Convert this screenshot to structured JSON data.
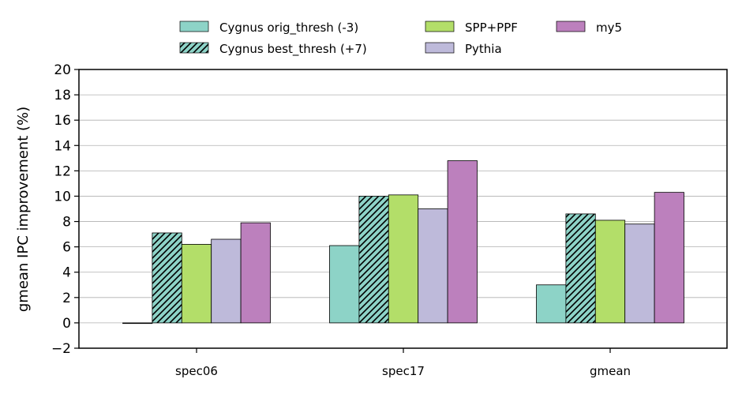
{
  "chart_data": {
    "type": "bar",
    "categories": [
      "spec06",
      "spec17",
      "gmean"
    ],
    "series": [
      {
        "name": "Cygnus orig_thresh (-3)",
        "values": [
          0.0,
          6.1,
          3.0
        ],
        "color": "#8dd3c7",
        "hatch": false
      },
      {
        "name": "Cygnus best_thresh (+7)",
        "values": [
          7.1,
          10.0,
          8.6
        ],
        "color": "#8dd3c7",
        "hatch": true
      },
      {
        "name": "SPP+PPF",
        "values": [
          6.2,
          10.1,
          8.1
        ],
        "color": "#b3de69",
        "hatch": false
      },
      {
        "name": "Pythia",
        "values": [
          6.6,
          9.0,
          7.8
        ],
        "color": "#bebada",
        "hatch": false
      },
      {
        "name": "my5",
        "values": [
          7.9,
          12.8,
          10.3
        ],
        "color": "#bc80bd",
        "hatch": false
      }
    ],
    "ylabel": "gmean IPC improvement (%)",
    "xlabel": "",
    "ylim": [
      -2,
      20
    ],
    "yticks": [
      "−2",
      "0",
      "2",
      "4",
      "6",
      "8",
      "10",
      "12",
      "14",
      "16",
      "18",
      "20"
    ],
    "grid": "horizontal",
    "legend_position": "top-center"
  }
}
